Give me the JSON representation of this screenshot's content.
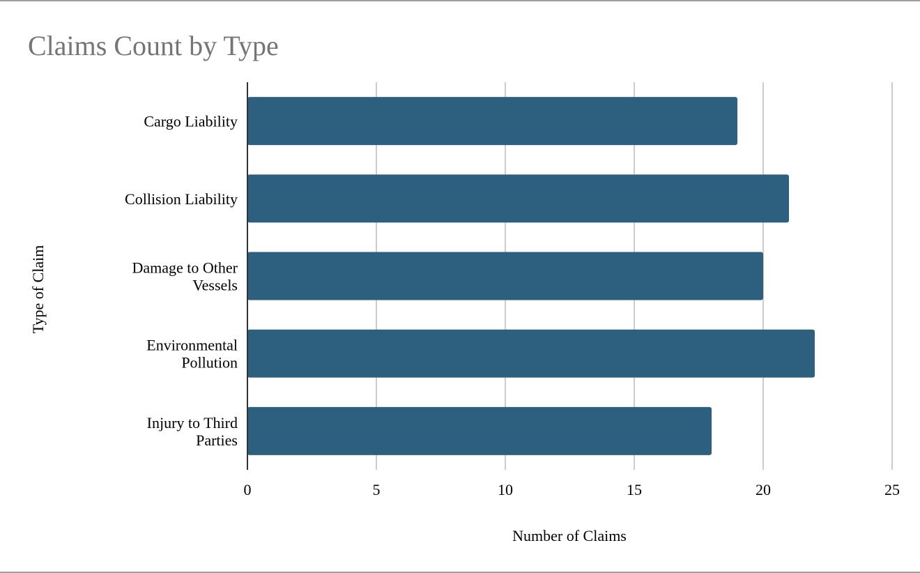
{
  "chart_data": {
    "type": "bar",
    "orientation": "horizontal",
    "title": "Claims Count by Type",
    "xlabel": "Number of Claims",
    "ylabel": "Type of Claim",
    "categories": [
      [
        "Cargo Liability"
      ],
      [
        "Collision Liability"
      ],
      [
        "Damage to Other",
        "Vessels"
      ],
      [
        "Environmental",
        "Pollution"
      ],
      [
        "Injury to Third",
        "Parties"
      ]
    ],
    "values": [
      19,
      21,
      20,
      22,
      18
    ],
    "xlim": [
      0,
      25
    ],
    "xticks": [
      "0",
      "5",
      "10",
      "15",
      "20",
      "25"
    ],
    "grid": true,
    "legend": "none",
    "colors": {
      "bar": "#2d5f7f",
      "grid": "#cccccc",
      "axis": "#333333",
      "title": "#757575"
    }
  }
}
